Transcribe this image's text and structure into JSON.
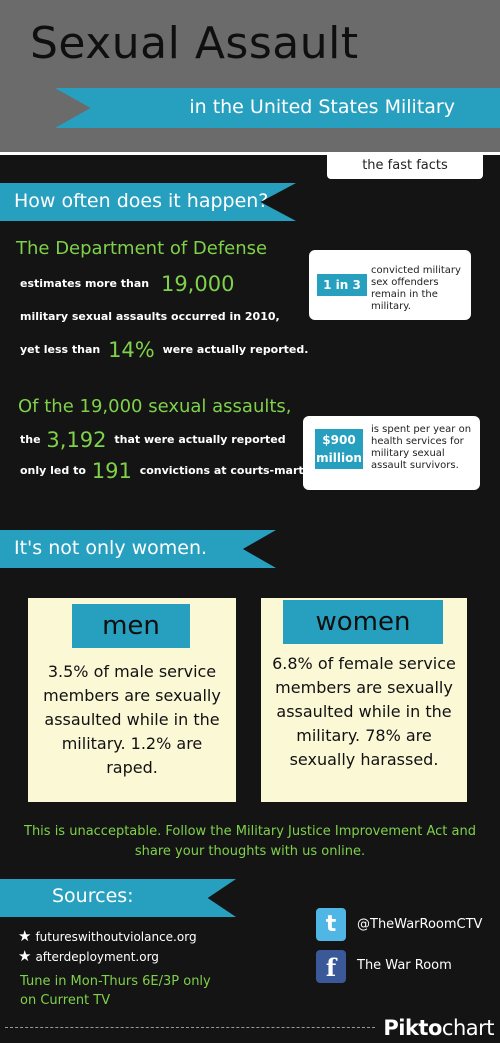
{
  "header": {
    "title": "Sexual Assault",
    "subtitle": "in the United States Military",
    "tab": "the fast facts"
  },
  "section1": {
    "heading": "How often does it happen?",
    "dod": "The Department of Defense",
    "line1_pre": "estimates more than",
    "line1_num": "19,000",
    "line2": "military sexual assaults occurred in 2010,",
    "line3_pre": "yet less than",
    "line3_num": "14%",
    "line3_post": "were actually reported.",
    "card1_badge": "1 in 3",
    "card1_text": "convicted military sex offenders remain in the military.",
    "of_heading": "Of the 19,000 sexual assaults,",
    "line4_pre": "the",
    "line4_num": "3,192",
    "line4_post": "that were actually reported",
    "line5_pre": "only led to",
    "line5_num": "191",
    "line5_post": "convictions at courts-martial.",
    "card2_badge": "$900 million",
    "card2_text": "is spent per year on health services for military sexual assault survivors."
  },
  "section2": {
    "heading": "It's not only women.",
    "men_label": "men",
    "men_text": "3.5% of male service members are sexually assaulted while in the military. 1.2% are raped.",
    "women_label": "women",
    "women_text": "6.8% of female service members are sexually assaulted while in the military. 78% are sexually harassed.",
    "cta": "This is unacceptable. Follow the Military Justice Improvement Act and share your thoughts with us online."
  },
  "sources": {
    "heading": "Sources:",
    "items": [
      "futureswithoutviolance.org",
      "afterdeployment.org"
    ],
    "tune": "Tune in Mon-Thurs 6E/3P only on Current TV"
  },
  "social": {
    "twitter": "@TheWarRoomCTV",
    "facebook": "The War Room",
    "twitter_icon": "twitter-icon",
    "facebook_icon": "facebook-icon"
  },
  "brand": {
    "bold": "Pikto",
    "thin": "chart"
  },
  "colors": {
    "accent": "#27a0c0",
    "green": "#7fd14a",
    "background": "#141414",
    "header": "#6b6b6b",
    "panel": "#fbf8d6"
  }
}
